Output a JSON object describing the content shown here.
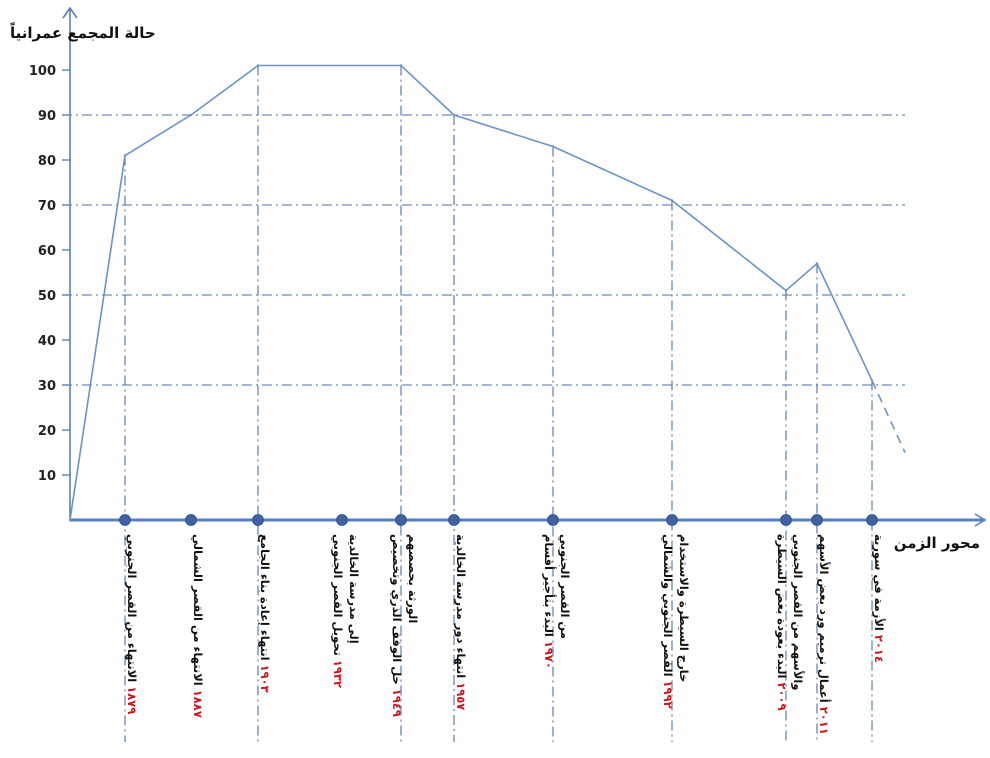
{
  "chart_data": {
    "type": "line",
    "ylabel": "حالة المجمع عمرانياً",
    "xlabel": "محور الزمن",
    "ylim": [
      0,
      100
    ],
    "yticks": [
      10,
      20,
      30,
      40,
      50,
      60,
      70,
      80,
      90,
      100
    ],
    "reference_lines_y": [
      30,
      50,
      70,
      90
    ],
    "series": [
      {
        "values": [
          {
            "x": 1860,
            "y": 0
          },
          {
            "x": 1879,
            "y": 81
          },
          {
            "x": 1887,
            "y": 90
          },
          {
            "x": 1903,
            "y": 101
          },
          {
            "x": 1949,
            "y": 101
          },
          {
            "x": 1957,
            "y": 90
          },
          {
            "x": 1970,
            "y": 83
          },
          {
            "x": 1992,
            "y": 71
          },
          {
            "x": 2009,
            "y": 51
          },
          {
            "x": 2011,
            "y": 57
          },
          {
            "x": 2014,
            "y": 31
          }
        ],
        "projection": [
          {
            "x": 2014,
            "y": 31
          },
          {
            "x": 2020,
            "y": 15
          }
        ]
      }
    ],
    "events": [
      {
        "year": "١٨٧٩",
        "text": "الانتهاء من القصر الجنوبي",
        "text2": "",
        "y": 81,
        "dropline": true
      },
      {
        "year": "١٨٨٧",
        "text": "الانتهاء من القصر الشمالي",
        "text2": "",
        "y": 90,
        "dropline": false
      },
      {
        "year": "١٩٠٣",
        "text": "انتهاء إعادة بناء الجامع",
        "text2": "",
        "y": 101,
        "dropline": true
      },
      {
        "year": "١٩٣٢",
        "text": "تحويل القصر الجنوبي",
        "text2": "إلى مدرسة الخالدية",
        "y": 101,
        "dropline": false
      },
      {
        "year": "١٩٤٩",
        "text": "حل الوقف الذري وتخصيص",
        "text2": "الورثة بحصصهم",
        "y": 101,
        "dropline": true
      },
      {
        "year": "١٩٥٧",
        "text": "انتهاء دور مدرسة الخالدية",
        "text2": "",
        "y": 90,
        "dropline": true
      },
      {
        "year": "١٩٧٠",
        "text": "البدء بتأجير أقسام",
        "text2": "من القصر الجنوبي",
        "y": 83,
        "dropline": true
      },
      {
        "year": "١٩٩٢",
        "text": "القصر الجنوبي والشمالي",
        "text2": "خارج السيطرة والاستخدام",
        "y": 71,
        "dropline": true
      },
      {
        "year": "٢٠٠٩",
        "text": "البدء بعودة بعض السيطرة",
        "text2": "والأسهم من القصر الجنوبي",
        "y": 51,
        "dropline": true
      },
      {
        "year": "٢٠١١",
        "text": "أعمال ترميم ورد بعض الأسهم",
        "text2": "",
        "y": 57,
        "dropline": true
      },
      {
        "year": "٢٠١٤",
        "text": "الأزمة في سورية",
        "text2": "",
        "y": 31,
        "dropline": true
      }
    ],
    "colors": {
      "line": "#6b93c9",
      "axis": "#5b7fbd",
      "grid": "#4a6fae",
      "dot": "#3d63a3",
      "year": "#d0141c"
    }
  }
}
